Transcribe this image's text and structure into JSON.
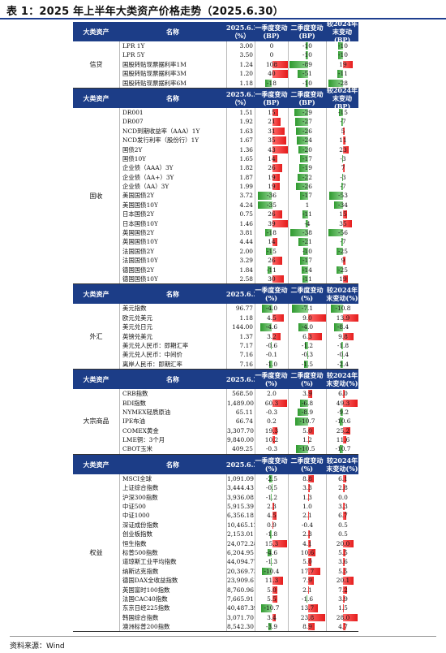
{
  "title": "表 1：2025 年上半年大类资产价格走势（2025.6.30）",
  "source": "资料来源：Wind",
  "header_main": {
    "cat": "大类资产",
    "name": "名称",
    "val": "2025.6.30（%）",
    "q": "一季度变动(BP)",
    "s": "二季度变动(BP)",
    "y": "较2024年末变动(BP)"
  },
  "header_fx": {
    "cat": "大类资产",
    "name": "名称",
    "val": "2025.6.30",
    "q": "一季度变动(%)",
    "s": "二季度变动(%)",
    "y": "较2024年末变动(%)"
  },
  "colors": {
    "header": "#1c3d87",
    "positive": "#e51c1c",
    "negative": "#2f9a2f"
  },
  "sections": [
    {
      "category": "信贷",
      "header": "main",
      "scale": {
        "q": 40,
        "s": 90,
        "y": 30
      },
      "rows": [
        {
          "name": "LPR 1Y",
          "val": "3.00",
          "q": "0",
          "s": "-10",
          "y": "-10"
        },
        {
          "name": "LPR 5Y",
          "val": "3.50",
          "q": "0",
          "s": "-10",
          "y": "-10"
        },
        {
          "name": "国股转贴现票据利率1M",
          "val": "1.24",
          "q": "108",
          "s": "-89",
          "y": "19"
        },
        {
          "name": "国股转贴现票据利率3M",
          "val": "1.20",
          "q": "40",
          "s": "-51",
          "y": "-11"
        },
        {
          "name": "国股转贴现票据利率6M",
          "val": "1.18",
          "q": "-18",
          "s": "-10",
          "y": "-28"
        }
      ]
    },
    {
      "category": "固收",
      "header": "main",
      "scale": {
        "q": 40,
        "s": 40,
        "y": 60
      },
      "rows": [
        {
          "name": "DR001",
          "val": "1.51",
          "q": "15",
          "s": "-29",
          "y": "-15"
        },
        {
          "name": "DR007",
          "val": "1.92",
          "q": "21",
          "s": "-27",
          "y": "-7"
        },
        {
          "name": "NCD到期收益率（AAA）1Y",
          "val": "1.63",
          "q": "31",
          "s": "-26",
          "y": "5"
        },
        {
          "name": "NCD发行利率（股份行）1Y",
          "val": "1.67",
          "q": "35",
          "s": "-24",
          "y": "11"
        },
        {
          "name": "国债2Y",
          "val": "1.36",
          "q": "43",
          "s": "-20",
          "y": "23"
        },
        {
          "name": "国债10Y",
          "val": "1.65",
          "q": "14",
          "s": "-17",
          "y": "-3"
        },
        {
          "name": "企业债（AAA）3Y",
          "val": "1.82",
          "q": "26",
          "s": "-19",
          "y": "7"
        },
        {
          "name": "企业债（AA+）3Y",
          "val": "1.87",
          "q": "19",
          "s": "-22",
          "y": "-3"
        },
        {
          "name": "企业债（AA）3Y",
          "val": "1.99",
          "q": "19",
          "s": "-26",
          "y": "-7"
        },
        {
          "name": "美国国债2Y",
          "val": "3.72",
          "q": "-36",
          "s": "-17",
          "y": "-53"
        },
        {
          "name": "美国国债10Y",
          "val": "4.24",
          "q": "-35",
          "s": "1",
          "y": "-34"
        },
        {
          "name": "日本国债2Y",
          "val": "0.75",
          "q": "26",
          "s": "-11",
          "y": "15"
        },
        {
          "name": "日本国债10Y",
          "val": "1.46",
          "q": "39",
          "s": "-4",
          "y": "35"
        },
        {
          "name": "英国国债2Y",
          "val": "3.81",
          "q": "-18",
          "s": "-38",
          "y": "-56"
        },
        {
          "name": "英国国债10Y",
          "val": "4.44",
          "q": "14",
          "s": "-21",
          "y": "-7"
        },
        {
          "name": "法国国债2Y",
          "val": "2.00",
          "q": "-15",
          "s": "-10",
          "y": "-25"
        },
        {
          "name": "法国国债10Y",
          "val": "3.29",
          "q": "26",
          "s": "-17",
          "y": "9"
        },
        {
          "name": "德国国债2Y",
          "val": "1.84",
          "q": "-11",
          "s": "-14",
          "y": "-25"
        },
        {
          "name": "德国国债10Y",
          "val": "2.58",
          "q": "30",
          "s": "-11",
          "y": "19"
        }
      ]
    },
    {
      "category": "外汇",
      "header": "fx",
      "scale": {
        "q": 6,
        "s": 8,
        "y": 14
      },
      "rows": [
        {
          "name": "美元指数",
          "val": "96.77",
          "q": "-4.0",
          "s": "-7.1",
          "y": "-10.8"
        },
        {
          "name": "欧元兑美元",
          "val": "1.18",
          "q": "4.5",
          "s": "9.0",
          "y": "13.9"
        },
        {
          "name": "美元兑日元",
          "val": "144.00",
          "q": "-4.6",
          "s": "-4.0",
          "y": "-8.4"
        },
        {
          "name": "英镑兑美元",
          "val": "1.37",
          "q": "3.2",
          "s": "6.3",
          "y": "9.8"
        },
        {
          "name": "美元兑人民币：即期汇率",
          "val": "7.17",
          "q": "-0.6",
          "s": "-1.2",
          "y": "-1.8"
        },
        {
          "name": "美元兑人民币：中间价",
          "val": "7.16",
          "q": "-0.1",
          "s": "-0.3",
          "y": "-0.4"
        },
        {
          "name": "离岸人民币：即期汇率",
          "val": "7.16",
          "q": "-1.0",
          "s": "-1.5",
          "y": "-2.4"
        }
      ]
    },
    {
      "category": "大宗商品",
      "header": "fx",
      "scale": {
        "q": 62,
        "s": 16,
        "y": 52
      },
      "rows": [
        {
          "name": "CRB指数",
          "val": "568.50",
          "q": "2.0",
          "s": "3.9",
          "y": "6.0"
        },
        {
          "name": "BDI指数",
          "val": "1,489.00",
          "q": "60.3",
          "s": "-6.8",
          "y": "49.3"
        },
        {
          "name": "NYMEX轻质原油",
          "val": "65.11",
          "q": "-0.3",
          "s": "-8.9",
          "y": "-9.2"
        },
        {
          "name": "IPE布油",
          "val": "66.74",
          "q": "0.2",
          "s": "-10.7",
          "y": "-10.6"
        },
        {
          "name": "COMEX黄金",
          "val": "3,307.70",
          "q": "19.3",
          "s": "5.0",
          "y": "25.2"
        },
        {
          "name": "LME铜：3个月",
          "val": "9,840.00",
          "q": "10.2",
          "s": "1.2",
          "y": "11.6"
        },
        {
          "name": "CBOT玉米",
          "val": "409.25",
          "q": "-0.3",
          "s": "-10.5",
          "y": "-10.7"
        }
      ]
    },
    {
      "category": "权益",
      "header": "fx",
      "scale": {
        "q": 16,
        "s": 25,
        "y": 30
      },
      "rows": [
        {
          "name": "MSCI全球",
          "val": "1,091.09",
          "q": "-2.5",
          "s": "8.8",
          "y": "6.1"
        },
        {
          "name": "上证综合指数",
          "val": "3,444.43",
          "q": "-0.5",
          "s": "3.3",
          "y": "2.8"
        },
        {
          "name": "沪深300指数",
          "val": "3,936.08",
          "q": "-1.2",
          "s": "1.3",
          "y": "0.0"
        },
        {
          "name": "中证500",
          "val": "5,915.39",
          "q": "2.3",
          "s": "1.0",
          "y": "3.3"
        },
        {
          "name": "中证1000",
          "val": "6,356.18",
          "q": "4.5",
          "s": "2.1",
          "y": "6.7"
        },
        {
          "name": "深证成份指数",
          "val": "10,465.12",
          "q": "0.9",
          "s": "-0.4",
          "y": "0.5"
        },
        {
          "name": "创业板指数",
          "val": "2,153.01",
          "q": "-1.8",
          "s": "2.3",
          "y": "0.5"
        },
        {
          "name": "恒生指数",
          "val": "24,072.28",
          "q": "15.3",
          "s": "4.1",
          "y": "20.0"
        },
        {
          "name": "标普500指数",
          "val": "6,204.95",
          "q": "-4.6",
          "s": "10.6",
          "y": "5.5"
        },
        {
          "name": "道琼斯工业平均指数",
          "val": "44,094.77",
          "q": "-1.3",
          "s": "5.0",
          "y": "3.6"
        },
        {
          "name": "纳斯达克指数",
          "val": "20,369.73",
          "q": "-10.4",
          "s": "17.7",
          "y": "5.5"
        },
        {
          "name": "德国DAX全收益指数",
          "val": "23,909.61",
          "q": "11.3",
          "s": "7.9",
          "y": "20.1"
        },
        {
          "name": "英国富时100指数",
          "val": "8,760.96",
          "q": "5.0",
          "s": "2.1",
          "y": "7.2"
        },
        {
          "name": "法国CAC40指数",
          "val": "7,665.91",
          "q": "5.5",
          "s": "-1.6",
          "y": "3.9"
        },
        {
          "name": "东京日经225指数",
          "val": "40,487.39",
          "q": "-10.7",
          "s": "13.7",
          "y": "1.5"
        },
        {
          "name": "韩国综合指数",
          "val": "3,071.70",
          "q": "3.4",
          "s": "23.8",
          "y": "28.0"
        },
        {
          "name": "澳洲标普200指数",
          "val": "8,542.30",
          "q": "-3.9",
          "s": "8.9",
          "y": "4.7"
        }
      ]
    }
  ]
}
